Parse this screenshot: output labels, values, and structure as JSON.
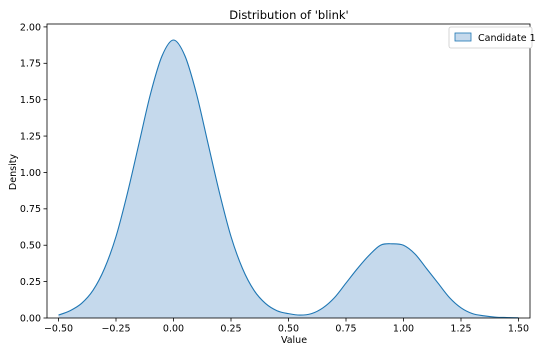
{
  "chart_data": {
    "type": "area",
    "title": "Distribution of 'blink'",
    "xlabel": "Value",
    "ylabel": "Density",
    "xlim": [
      -0.55,
      1.55
    ],
    "ylim": [
      0.0,
      2.02
    ],
    "xticks": [
      -0.5,
      -0.25,
      0.0,
      0.25,
      0.5,
      0.75,
      1.0,
      1.25,
      1.5
    ],
    "xtick_labels": [
      "−0.50",
      "−0.25",
      "0.00",
      "0.25",
      "0.50",
      "0.75",
      "1.00",
      "1.25",
      "1.50"
    ],
    "yticks": [
      0.0,
      0.25,
      0.5,
      0.75,
      1.0,
      1.25,
      1.5,
      1.75,
      2.0
    ],
    "ytick_labels": [
      "0.00",
      "0.25",
      "0.50",
      "0.75",
      "1.00",
      "1.25",
      "1.50",
      "1.75",
      "2.00"
    ],
    "legend_position": "upper-right",
    "grid": false,
    "series": [
      {
        "name": "Candidate 1",
        "fill_color": "#c5d9ec",
        "line_color": "#1f77b4",
        "x": [
          -0.5,
          -0.45,
          -0.4,
          -0.35,
          -0.3,
          -0.25,
          -0.2,
          -0.15,
          -0.1,
          -0.05,
          0.0,
          0.05,
          0.1,
          0.15,
          0.2,
          0.25,
          0.3,
          0.35,
          0.4,
          0.45,
          0.5,
          0.55,
          0.6,
          0.65,
          0.7,
          0.75,
          0.8,
          0.85,
          0.9,
          0.95,
          1.0,
          1.05,
          1.1,
          1.15,
          1.2,
          1.25,
          1.3,
          1.35,
          1.4,
          1.45,
          1.5
        ],
        "y": [
          0.02,
          0.05,
          0.1,
          0.19,
          0.34,
          0.56,
          0.86,
          1.2,
          1.54,
          1.8,
          1.91,
          1.8,
          1.54,
          1.2,
          0.86,
          0.56,
          0.34,
          0.19,
          0.1,
          0.05,
          0.03,
          0.02,
          0.03,
          0.07,
          0.14,
          0.24,
          0.34,
          0.43,
          0.5,
          0.51,
          0.5,
          0.44,
          0.34,
          0.24,
          0.14,
          0.07,
          0.03,
          0.015,
          0.006,
          0.003,
          0.001
        ]
      }
    ]
  }
}
